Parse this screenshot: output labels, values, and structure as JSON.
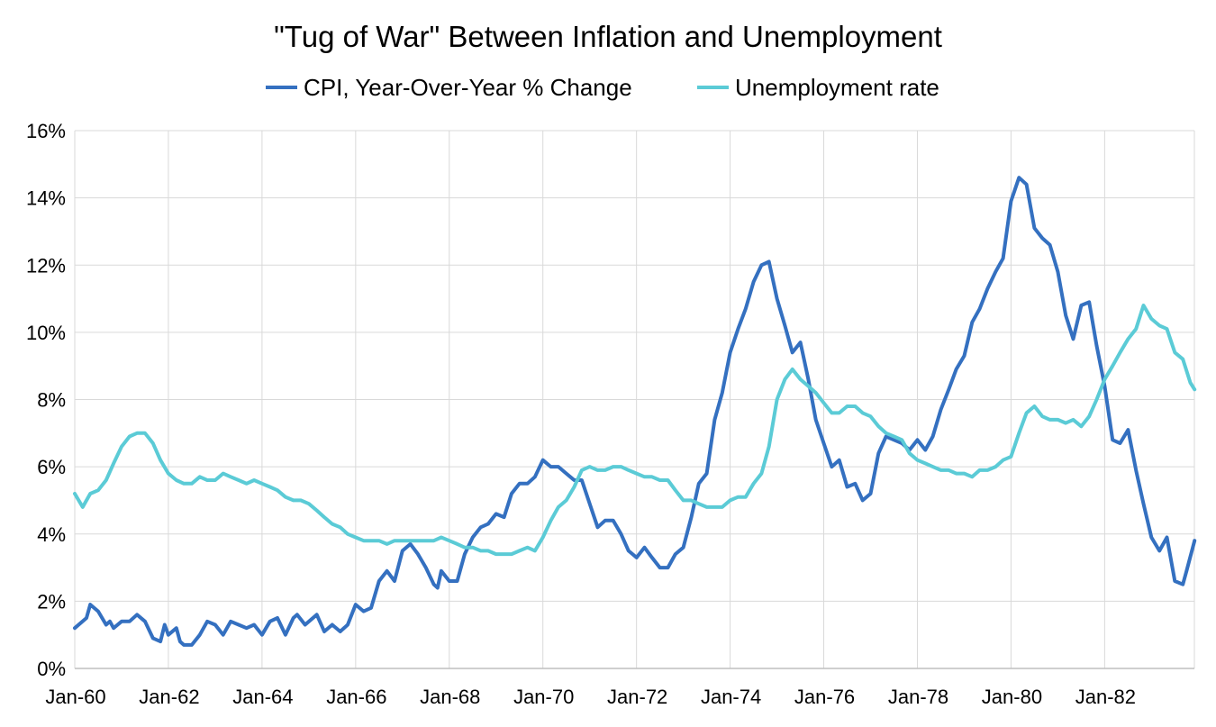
{
  "chart_data": {
    "type": "line",
    "title": "\"Tug of War\" Between Inflation and Unemployment",
    "xlabel": "",
    "ylabel": "",
    "ylim": [
      0,
      16
    ],
    "y_ticks": [
      0,
      2,
      4,
      6,
      8,
      10,
      12,
      14,
      16
    ],
    "y_tick_labels": [
      "0%",
      "2%",
      "4%",
      "6%",
      "8%",
      "10%",
      "12%",
      "14%",
      "16%"
    ],
    "x_range": [
      1960.0,
      1983.917
    ],
    "x_ticks": [
      1960,
      1962,
      1964,
      1966,
      1968,
      1970,
      1972,
      1974,
      1976,
      1978,
      1980,
      1982
    ],
    "x_tick_labels": [
      "Jan-60",
      "Jan-62",
      "Jan-64",
      "Jan-66",
      "Jan-68",
      "Jan-70",
      "Jan-72",
      "Jan-74",
      "Jan-76",
      "Jan-78",
      "Jan-80",
      "Jan-82"
    ],
    "grid": true,
    "legend_position": "top",
    "series": [
      {
        "name": "CPI, Year-Over-Year % Change",
        "color": "#3470c0",
        "points": [
          [
            1960.0,
            1.2
          ],
          [
            1960.25,
            1.5
          ],
          [
            1960.33,
            1.9
          ],
          [
            1960.5,
            1.7
          ],
          [
            1960.67,
            1.3
          ],
          [
            1960.75,
            1.4
          ],
          [
            1960.83,
            1.2
          ],
          [
            1961.0,
            1.4
          ],
          [
            1961.17,
            1.4
          ],
          [
            1961.33,
            1.6
          ],
          [
            1961.5,
            1.4
          ],
          [
            1961.67,
            0.9
          ],
          [
            1961.83,
            0.8
          ],
          [
            1961.92,
            1.3
          ],
          [
            1962.0,
            1.0
          ],
          [
            1962.17,
            1.2
          ],
          [
            1962.25,
            0.8
          ],
          [
            1962.33,
            0.7
          ],
          [
            1962.5,
            0.7
          ],
          [
            1962.67,
            1.0
          ],
          [
            1962.83,
            1.4
          ],
          [
            1963.0,
            1.3
          ],
          [
            1963.17,
            1.0
          ],
          [
            1963.33,
            1.4
          ],
          [
            1963.5,
            1.3
          ],
          [
            1963.67,
            1.2
          ],
          [
            1963.83,
            1.3
          ],
          [
            1964.0,
            1.0
          ],
          [
            1964.17,
            1.4
          ],
          [
            1964.33,
            1.5
          ],
          [
            1964.5,
            1.0
          ],
          [
            1964.67,
            1.5
          ],
          [
            1964.75,
            1.6
          ],
          [
            1964.92,
            1.3
          ],
          [
            1965.17,
            1.6
          ],
          [
            1965.33,
            1.1
          ],
          [
            1965.5,
            1.3
          ],
          [
            1965.67,
            1.1
          ],
          [
            1965.83,
            1.3
          ],
          [
            1966.0,
            1.9
          ],
          [
            1966.17,
            1.7
          ],
          [
            1966.33,
            1.8
          ],
          [
            1966.5,
            2.6
          ],
          [
            1966.67,
            2.9
          ],
          [
            1966.83,
            2.6
          ],
          [
            1967.0,
            3.5
          ],
          [
            1967.17,
            3.7
          ],
          [
            1967.33,
            3.4
          ],
          [
            1967.5,
            3.0
          ],
          [
            1967.67,
            2.5
          ],
          [
            1967.75,
            2.4
          ],
          [
            1967.83,
            2.9
          ],
          [
            1968.0,
            2.6
          ],
          [
            1968.17,
            2.6
          ],
          [
            1968.33,
            3.4
          ],
          [
            1968.5,
            3.9
          ],
          [
            1968.67,
            4.2
          ],
          [
            1968.83,
            4.3
          ],
          [
            1969.0,
            4.6
          ],
          [
            1969.17,
            4.5
          ],
          [
            1969.33,
            5.2
          ],
          [
            1969.5,
            5.5
          ],
          [
            1969.67,
            5.5
          ],
          [
            1969.83,
            5.7
          ],
          [
            1970.0,
            6.2
          ],
          [
            1970.17,
            6.0
          ],
          [
            1970.33,
            6.0
          ],
          [
            1970.5,
            5.8
          ],
          [
            1970.67,
            5.6
          ],
          [
            1970.83,
            5.6
          ],
          [
            1971.0,
            4.9
          ],
          [
            1971.17,
            4.2
          ],
          [
            1971.33,
            4.4
          ],
          [
            1971.5,
            4.4
          ],
          [
            1971.67,
            4.0
          ],
          [
            1971.83,
            3.5
          ],
          [
            1972.0,
            3.3
          ],
          [
            1972.17,
            3.6
          ],
          [
            1972.33,
            3.3
          ],
          [
            1972.5,
            3.0
          ],
          [
            1972.67,
            3.0
          ],
          [
            1972.83,
            3.4
          ],
          [
            1973.0,
            3.6
          ],
          [
            1973.17,
            4.5
          ],
          [
            1973.33,
            5.5
          ],
          [
            1973.5,
            5.8
          ],
          [
            1973.67,
            7.4
          ],
          [
            1973.83,
            8.2
          ],
          [
            1974.0,
            9.4
          ],
          [
            1974.17,
            10.1
          ],
          [
            1974.33,
            10.7
          ],
          [
            1974.5,
            11.5
          ],
          [
            1974.67,
            12.0
          ],
          [
            1974.83,
            12.1
          ],
          [
            1975.0,
            11.0
          ],
          [
            1975.17,
            10.2
          ],
          [
            1975.33,
            9.4
          ],
          [
            1975.5,
            9.7
          ],
          [
            1975.67,
            8.6
          ],
          [
            1975.83,
            7.4
          ],
          [
            1976.0,
            6.7
          ],
          [
            1976.17,
            6.0
          ],
          [
            1976.33,
            6.2
          ],
          [
            1976.5,
            5.4
          ],
          [
            1976.67,
            5.5
          ],
          [
            1976.83,
            5.0
          ],
          [
            1977.0,
            5.2
          ],
          [
            1977.17,
            6.4
          ],
          [
            1977.33,
            6.9
          ],
          [
            1977.5,
            6.8
          ],
          [
            1977.67,
            6.7
          ],
          [
            1977.83,
            6.5
          ],
          [
            1978.0,
            6.8
          ],
          [
            1978.17,
            6.5
          ],
          [
            1978.33,
            6.9
          ],
          [
            1978.5,
            7.7
          ],
          [
            1978.67,
            8.3
          ],
          [
            1978.83,
            8.9
          ],
          [
            1979.0,
            9.3
          ],
          [
            1979.17,
            10.3
          ],
          [
            1979.33,
            10.7
          ],
          [
            1979.5,
            11.3
          ],
          [
            1979.67,
            11.8
          ],
          [
            1979.83,
            12.2
          ],
          [
            1980.0,
            13.9
          ],
          [
            1980.17,
            14.6
          ],
          [
            1980.33,
            14.4
          ],
          [
            1980.5,
            13.1
          ],
          [
            1980.67,
            12.8
          ],
          [
            1980.83,
            12.6
          ],
          [
            1981.0,
            11.8
          ],
          [
            1981.17,
            10.5
          ],
          [
            1981.33,
            9.8
          ],
          [
            1981.5,
            10.8
          ],
          [
            1981.67,
            10.9
          ],
          [
            1981.83,
            9.6
          ],
          [
            1982.0,
            8.4
          ],
          [
            1982.17,
            6.8
          ],
          [
            1982.33,
            6.7
          ],
          [
            1982.5,
            7.1
          ],
          [
            1982.67,
            5.9
          ],
          [
            1982.83,
            4.9
          ],
          [
            1983.0,
            3.9
          ],
          [
            1983.17,
            3.5
          ],
          [
            1983.33,
            3.9
          ],
          [
            1983.5,
            2.6
          ],
          [
            1983.67,
            2.5
          ],
          [
            1983.75,
            2.9
          ],
          [
            1983.92,
            3.8
          ]
        ]
      },
      {
        "name": "Unemployment rate",
        "color": "#5bcbd6",
        "points": [
          [
            1960.0,
            5.2
          ],
          [
            1960.17,
            4.8
          ],
          [
            1960.33,
            5.2
          ],
          [
            1960.5,
            5.3
          ],
          [
            1960.67,
            5.6
          ],
          [
            1960.83,
            6.1
          ],
          [
            1961.0,
            6.6
          ],
          [
            1961.17,
            6.9
          ],
          [
            1961.33,
            7.0
          ],
          [
            1961.5,
            7.0
          ],
          [
            1961.67,
            6.7
          ],
          [
            1961.83,
            6.2
          ],
          [
            1962.0,
            5.8
          ],
          [
            1962.17,
            5.6
          ],
          [
            1962.33,
            5.5
          ],
          [
            1962.5,
            5.5
          ],
          [
            1962.67,
            5.7
          ],
          [
            1962.83,
            5.6
          ],
          [
            1963.0,
            5.6
          ],
          [
            1963.17,
            5.8
          ],
          [
            1963.33,
            5.7
          ],
          [
            1963.5,
            5.6
          ],
          [
            1963.67,
            5.5
          ],
          [
            1963.83,
            5.6
          ],
          [
            1964.0,
            5.5
          ],
          [
            1964.17,
            5.4
          ],
          [
            1964.33,
            5.3
          ],
          [
            1964.5,
            5.1
          ],
          [
            1964.67,
            5.0
          ],
          [
            1964.83,
            5.0
          ],
          [
            1965.0,
            4.9
          ],
          [
            1965.17,
            4.7
          ],
          [
            1965.33,
            4.5
          ],
          [
            1965.5,
            4.3
          ],
          [
            1965.67,
            4.2
          ],
          [
            1965.83,
            4.0
          ],
          [
            1966.0,
            3.9
          ],
          [
            1966.17,
            3.8
          ],
          [
            1966.33,
            3.8
          ],
          [
            1966.5,
            3.8
          ],
          [
            1966.67,
            3.7
          ],
          [
            1966.83,
            3.8
          ],
          [
            1967.0,
            3.8
          ],
          [
            1967.17,
            3.8
          ],
          [
            1967.33,
            3.8
          ],
          [
            1967.5,
            3.8
          ],
          [
            1967.67,
            3.8
          ],
          [
            1967.83,
            3.9
          ],
          [
            1968.0,
            3.8
          ],
          [
            1968.17,
            3.7
          ],
          [
            1968.33,
            3.6
          ],
          [
            1968.5,
            3.6
          ],
          [
            1968.67,
            3.5
          ],
          [
            1968.83,
            3.5
          ],
          [
            1969.0,
            3.4
          ],
          [
            1969.17,
            3.4
          ],
          [
            1969.33,
            3.4
          ],
          [
            1969.5,
            3.5
          ],
          [
            1969.67,
            3.6
          ],
          [
            1969.83,
            3.5
          ],
          [
            1970.0,
            3.9
          ],
          [
            1970.17,
            4.4
          ],
          [
            1970.33,
            4.8
          ],
          [
            1970.5,
            5.0
          ],
          [
            1970.67,
            5.4
          ],
          [
            1970.83,
            5.9
          ],
          [
            1971.0,
            6.0
          ],
          [
            1971.17,
            5.9
          ],
          [
            1971.33,
            5.9
          ],
          [
            1971.5,
            6.0
          ],
          [
            1971.67,
            6.0
          ],
          [
            1971.83,
            5.9
          ],
          [
            1972.0,
            5.8
          ],
          [
            1972.17,
            5.7
          ],
          [
            1972.33,
            5.7
          ],
          [
            1972.5,
            5.6
          ],
          [
            1972.67,
            5.6
          ],
          [
            1972.83,
            5.3
          ],
          [
            1973.0,
            5.0
          ],
          [
            1973.17,
            5.0
          ],
          [
            1973.33,
            4.9
          ],
          [
            1973.5,
            4.8
          ],
          [
            1973.67,
            4.8
          ],
          [
            1973.83,
            4.8
          ],
          [
            1974.0,
            5.0
          ],
          [
            1974.17,
            5.1
          ],
          [
            1974.33,
            5.1
          ],
          [
            1974.5,
            5.5
          ],
          [
            1974.67,
            5.8
          ],
          [
            1974.83,
            6.6
          ],
          [
            1975.0,
            8.0
          ],
          [
            1975.17,
            8.6
          ],
          [
            1975.33,
            8.9
          ],
          [
            1975.5,
            8.6
          ],
          [
            1975.67,
            8.4
          ],
          [
            1975.83,
            8.2
          ],
          [
            1976.0,
            7.9
          ],
          [
            1976.17,
            7.6
          ],
          [
            1976.33,
            7.6
          ],
          [
            1976.5,
            7.8
          ],
          [
            1976.67,
            7.8
          ],
          [
            1976.83,
            7.6
          ],
          [
            1977.0,
            7.5
          ],
          [
            1977.17,
            7.2
          ],
          [
            1977.33,
            7.0
          ],
          [
            1977.5,
            6.9
          ],
          [
            1977.67,
            6.8
          ],
          [
            1977.83,
            6.4
          ],
          [
            1978.0,
            6.2
          ],
          [
            1978.17,
            6.1
          ],
          [
            1978.33,
            6.0
          ],
          [
            1978.5,
            5.9
          ],
          [
            1978.67,
            5.9
          ],
          [
            1978.83,
            5.8
          ],
          [
            1979.0,
            5.8
          ],
          [
            1979.17,
            5.7
          ],
          [
            1979.33,
            5.9
          ],
          [
            1979.5,
            5.9
          ],
          [
            1979.67,
            6.0
          ],
          [
            1979.83,
            6.2
          ],
          [
            1980.0,
            6.3
          ],
          [
            1980.17,
            7.0
          ],
          [
            1980.33,
            7.6
          ],
          [
            1980.5,
            7.8
          ],
          [
            1980.67,
            7.5
          ],
          [
            1980.83,
            7.4
          ],
          [
            1981.0,
            7.4
          ],
          [
            1981.17,
            7.3
          ],
          [
            1981.33,
            7.4
          ],
          [
            1981.5,
            7.2
          ],
          [
            1981.67,
            7.5
          ],
          [
            1981.83,
            8.0
          ],
          [
            1982.0,
            8.6
          ],
          [
            1982.17,
            9.0
          ],
          [
            1982.33,
            9.4
          ],
          [
            1982.5,
            9.8
          ],
          [
            1982.67,
            10.1
          ],
          [
            1982.83,
            10.8
          ],
          [
            1983.0,
            10.4
          ],
          [
            1983.17,
            10.2
          ],
          [
            1983.33,
            10.1
          ],
          [
            1983.5,
            9.4
          ],
          [
            1983.67,
            9.2
          ],
          [
            1983.83,
            8.5
          ],
          [
            1983.92,
            8.3
          ]
        ]
      }
    ]
  }
}
